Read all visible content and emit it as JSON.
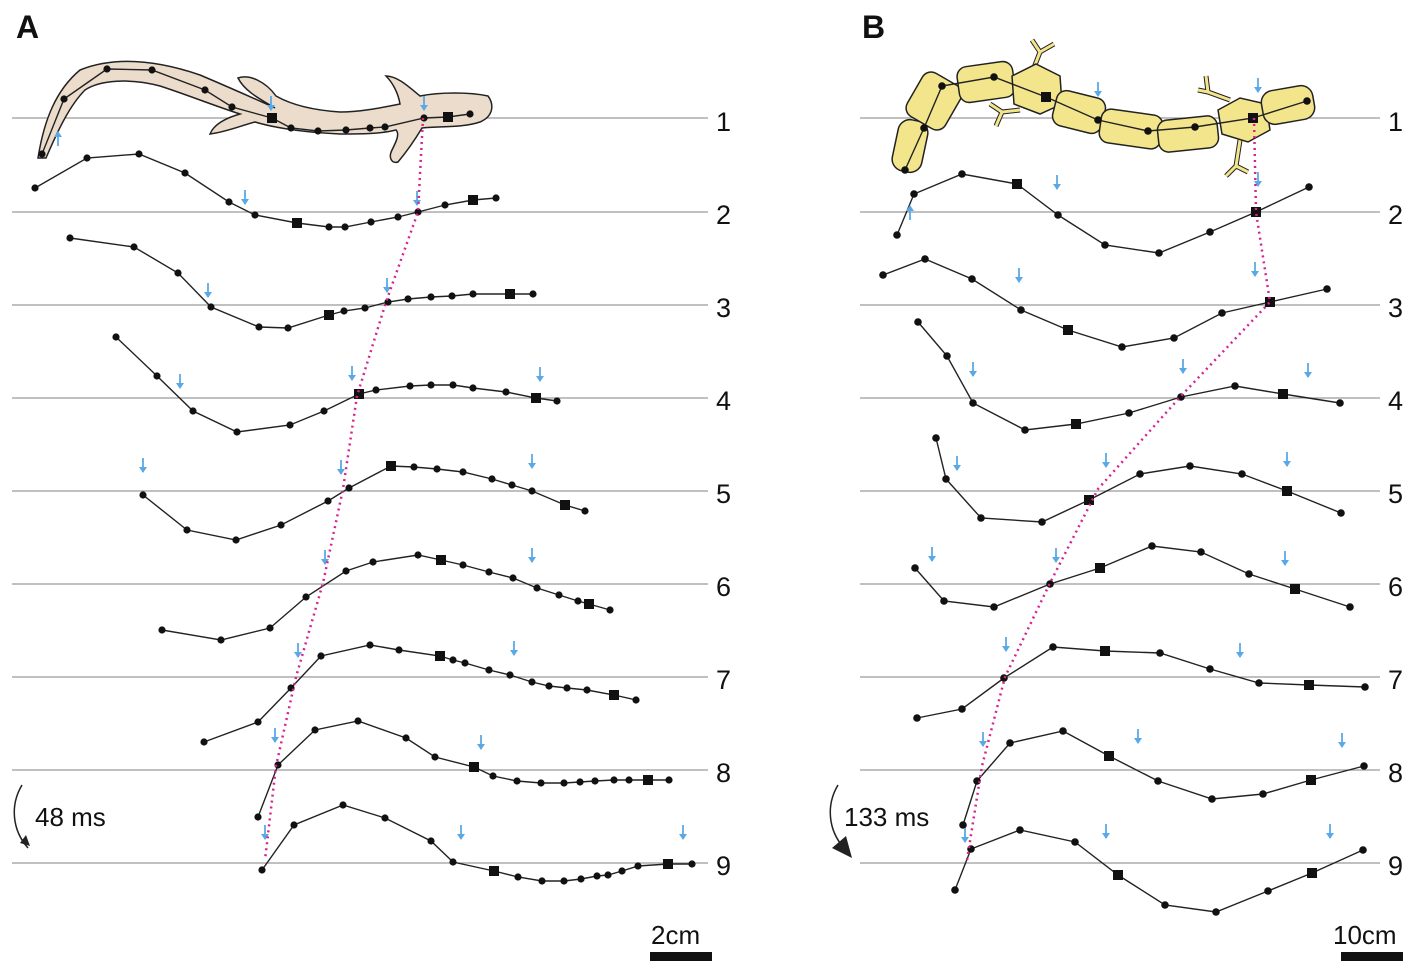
{
  "panels": [
    {
      "id": "A",
      "label": "A",
      "row_labels": [
        "1",
        "2",
        "3",
        "4",
        "5",
        "6",
        "7",
        "8",
        "9"
      ],
      "time_label": "48 ms",
      "scale_label": "2cm",
      "animal": "salamander-icon",
      "colors": {
        "body": "#ecdccb",
        "outline": "#222222",
        "arrow": "#5aa9e6",
        "dotted": "#d6248f",
        "baseline": "#9a9a9a"
      }
    },
    {
      "id": "B",
      "label": "B",
      "row_labels": [
        "1",
        "2",
        "3",
        "4",
        "5",
        "6",
        "7",
        "8",
        "9"
      ],
      "time_label": "133 ms",
      "scale_label": "10cm",
      "animal": "salamander-robot-icon",
      "colors": {
        "body": "#f3e58c",
        "outline": "#222222",
        "arrow": "#5aa9e6",
        "dotted": "#d6248f",
        "baseline": "#9a9a9a"
      }
    }
  ]
}
